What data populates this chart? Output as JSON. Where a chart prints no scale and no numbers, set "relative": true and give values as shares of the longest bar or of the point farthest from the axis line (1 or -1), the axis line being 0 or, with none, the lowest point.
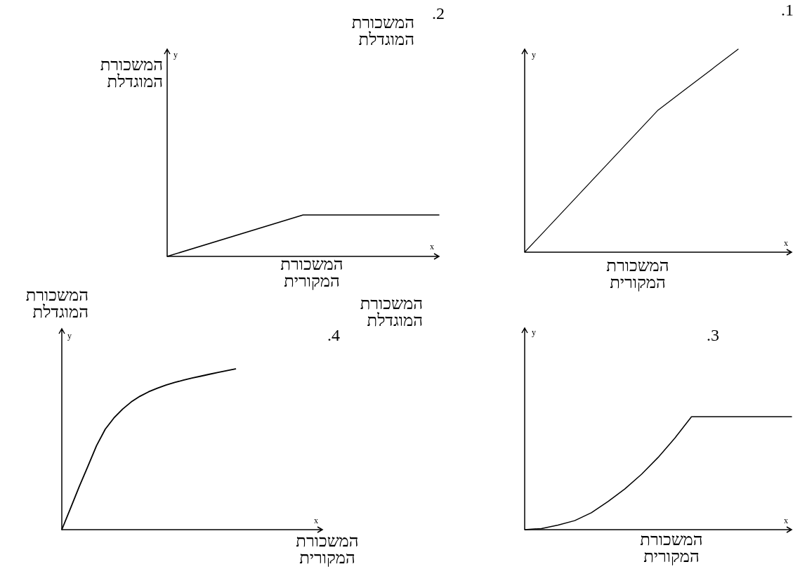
{
  "chart_data": [
    {
      "type": "line",
      "title": ".1",
      "xlabel": "המשכורת המקורית",
      "ylabel": "המשכורת המוגדלת",
      "annotations": [
        "y",
        "x"
      ],
      "relative": true,
      "categories": [
        null,
        null,
        null,
        null,
        null,
        null,
        null,
        null,
        null,
        null,
        null
      ],
      "series": [
        {
          "color": "#000000",
          "values": [
            0,
            0.14,
            0.28,
            0.42,
            0.56,
            0.7,
            0.8,
            0.9,
            1,
            null,
            null
          ]
        }
      ]
    },
    {
      "type": "line",
      "title": ".2",
      "xlabel": "המשכורת המקורית",
      "ylabel": "המשכורת המוגדלת",
      "annotations": [
        "y",
        "x"
      ],
      "relative": true,
      "categories": [
        null,
        null,
        null
      ],
      "series": [
        {
          "color": "#000000",
          "values": [
            0,
            1,
            1
          ]
        }
      ]
    },
    {
      "type": "line",
      "title": ".3",
      "xlabel": "המשכורת המקורית",
      "ylabel": "המשכורת המוגדלת",
      "annotations": [
        "y",
        "x"
      ],
      "relative": true,
      "categories": [
        null,
        null,
        null,
        null,
        null,
        null,
        null,
        null,
        null,
        null,
        null,
        null,
        null,
        null,
        null,
        null,
        null
      ],
      "series": [
        {
          "color": "#000000",
          "values": [
            0,
            0.01,
            0.04,
            0.08,
            0.15,
            0.25,
            0.36,
            0.49,
            0.64,
            0.81,
            1,
            1,
            1,
            1,
            1,
            1,
            1
          ]
        }
      ]
    },
    {
      "type": "line",
      "title": ".4",
      "xlabel": "המשכורת המקורית",
      "ylabel": "המשכורת המוגדלת",
      "annotations": [
        "y",
        "x"
      ],
      "relative": true,
      "categories": [
        null,
        null,
        null,
        null,
        null,
        null,
        null,
        null,
        null,
        null,
        null,
        null,
        null,
        null,
        null,
        null,
        null,
        null,
        null,
        null,
        null,
        null,
        null,
        null,
        null,
        null,
        null,
        null,
        null,
        null,
        null
      ],
      "series": [
        {
          "color": "#000000",
          "values": [
            0,
            0.133,
            0.267,
            0.394,
            0.523,
            0.625,
            0.695,
            0.75,
            0.795,
            0.83,
            0.858,
            0.88,
            0.9,
            0.916,
            0.93,
            0.943,
            0.955,
            0.967,
            0.978,
            0.989,
            1,
            null,
            null,
            null,
            null,
            null,
            null,
            null,
            null,
            null,
            null
          ]
        }
      ]
    }
  ]
}
